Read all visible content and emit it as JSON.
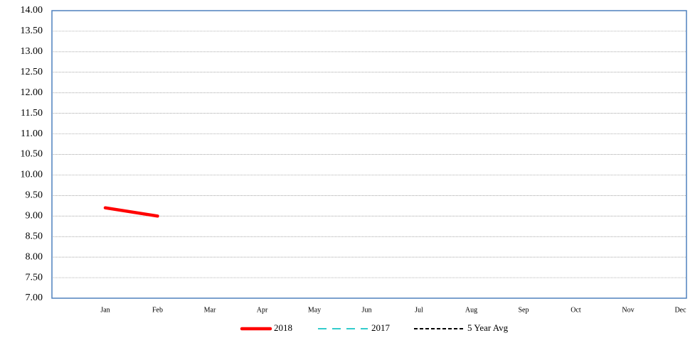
{
  "chart_data": {
    "type": "line",
    "categories": [
      "Jan",
      "Feb",
      "Mar",
      "Apr",
      "May",
      "Jun",
      "Jul",
      "Aug",
      "Sep",
      "Oct",
      "Nov",
      "Dec"
    ],
    "series": [
      {
        "name": "2018",
        "color": "#ff0000",
        "values": [
          9.2,
          9.0,
          null,
          null,
          null,
          null,
          null,
          null,
          null,
          null,
          null,
          null
        ]
      },
      {
        "name": "2017",
        "color": "#33cccc",
        "values": [
          null,
          null,
          null,
          null,
          null,
          null,
          null,
          null,
          null,
          null,
          null,
          null
        ]
      },
      {
        "name": "5 Year Avg",
        "color": "#000000",
        "values": [
          null,
          null,
          null,
          null,
          null,
          null,
          null,
          null,
          null,
          null,
          null,
          null
        ]
      }
    ],
    "ylim": [
      7,
      14
    ],
    "yticks": [
      {
        "value": 7,
        "label": "7.00"
      },
      {
        "value": 7.5,
        "label": "7.50"
      },
      {
        "value": 8,
        "label": "8.00"
      },
      {
        "value": 8.5,
        "label": "8.50"
      },
      {
        "value": 9,
        "label": "9.00"
      },
      {
        "value": 9.5,
        "label": "9.50"
      },
      {
        "value": 10,
        "label": "10.00"
      },
      {
        "value": 10.5,
        "label": "10.50"
      },
      {
        "value": 11,
        "label": "11.00"
      },
      {
        "value": 11.5,
        "label": "11.50"
      },
      {
        "value": 12,
        "label": "12.00"
      },
      {
        "value": 12.5,
        "label": "12.50"
      },
      {
        "value": 13,
        "label": "13.00"
      },
      {
        "value": 13.5,
        "label": "13.50"
      },
      {
        "value": 14,
        "label": "14.00"
      }
    ],
    "grid": true,
    "legend": "bottom"
  }
}
